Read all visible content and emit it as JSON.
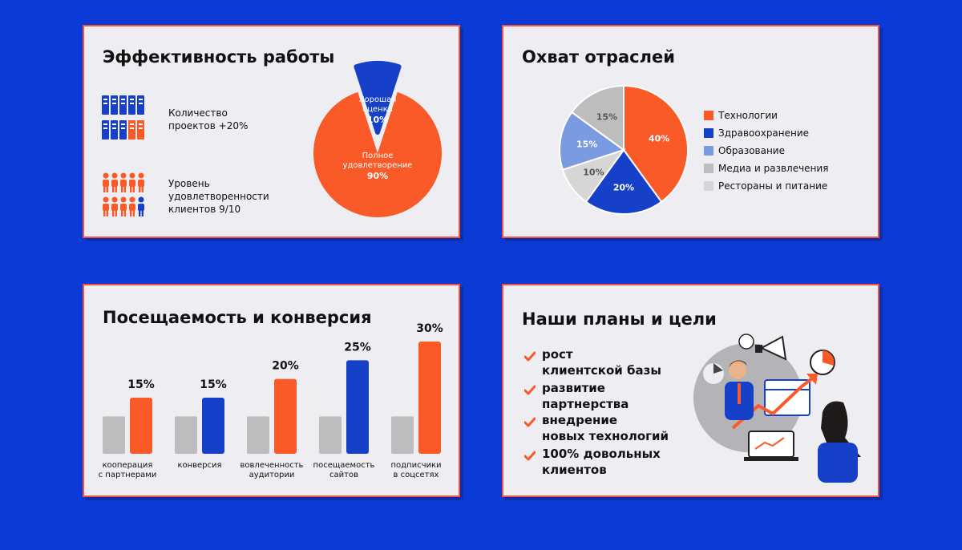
{
  "colors": {
    "background": "#0b3ad6",
    "card": "#eeedf2",
    "border": "#f4523b",
    "orange": "#fa5a28",
    "blue": "#1640c8",
    "light_blue": "#7b9be0",
    "grey": "#bdbdbd",
    "light_grey": "#d6d6d6"
  },
  "efficiency": {
    "title": "Эффективность работы",
    "projects_line1": "Количество",
    "projects_line2": "проектов +20%",
    "satisfaction_line1": "Уровень",
    "satisfaction_line2": "удовлетворенности",
    "satisfaction_line3": "клиентов 9/10",
    "icons": {
      "projects_total": 10,
      "projects_highlighted": 2,
      "people_total": 10,
      "people_highlighted": 9
    }
  },
  "industries": {
    "title": "Охват отраслей"
  },
  "traffic": {
    "title": "Посещаемость и конверсия"
  },
  "goals": {
    "title": "Наши планы и цели",
    "items": [
      {
        "line1": "рост",
        "line2": "клиентской базы"
      },
      {
        "line1": "развитие",
        "line2": "партнерства"
      },
      {
        "line1": "внедрение",
        "line2": "новых технологий"
      },
      {
        "line1": "100% довольных",
        "line2": "клиентов"
      }
    ],
    "illustration": "people-with-growth-chart-illustration"
  },
  "chart_data": [
    {
      "type": "pie",
      "title": "Эффективность работы",
      "slices": [
        {
          "label": "Полное удовлетворение",
          "value": 90,
          "value_label": "90%",
          "color": "#fa5a28"
        },
        {
          "label": "Хорошая оценка",
          "value": 10,
          "value_label": "10%",
          "color": "#1640c8"
        }
      ]
    },
    {
      "type": "pie",
      "title": "Охват отраслей",
      "legend": "right",
      "slices": [
        {
          "label": "Технологии",
          "value": 40,
          "value_label": "40%",
          "color": "#fa5a28"
        },
        {
          "label": "Здравоохранение",
          "value": 20,
          "value_label": "20%",
          "color": "#1640c8"
        },
        {
          "label": "Рестораны и питание",
          "value": 10,
          "value_label": "10%",
          "color": "#d6d6d6"
        },
        {
          "label": "Образование",
          "value": 15,
          "value_label": "15%",
          "color": "#7b9be0"
        },
        {
          "label": "Медиа и развлечения",
          "value": 15,
          "value_label": "15%",
          "color": "#bdbdbd"
        }
      ],
      "legend_order": [
        "Технологии",
        "Здравоохранение",
        "Образование",
        "Медиа и развлечения",
        "Рестораны и питание"
      ]
    },
    {
      "type": "bar",
      "title": "Посещаемость и конверсия",
      "ylim": [
        0,
        30
      ],
      "categories": [
        {
          "line1": "кооперация",
          "line2": "с партнерами"
        },
        {
          "line1": "конверсия",
          "line2": ""
        },
        {
          "line1": "вовлеченность",
          "line2": "аудитории"
        },
        {
          "line1": "посещаемость",
          "line2": "сайтов"
        },
        {
          "line1": "подписчики",
          "line2": "в соцсетях"
        }
      ],
      "baseline_values": [
        10,
        10,
        10,
        10,
        10
      ],
      "values": [
        15,
        15,
        20,
        25,
        30
      ],
      "value_labels": [
        "15%",
        "15%",
        "20%",
        "25%",
        "30%"
      ],
      "bar_colors": [
        "#fa5a28",
        "#1640c8",
        "#fa5a28",
        "#1640c8",
        "#fa5a28"
      ]
    }
  ]
}
